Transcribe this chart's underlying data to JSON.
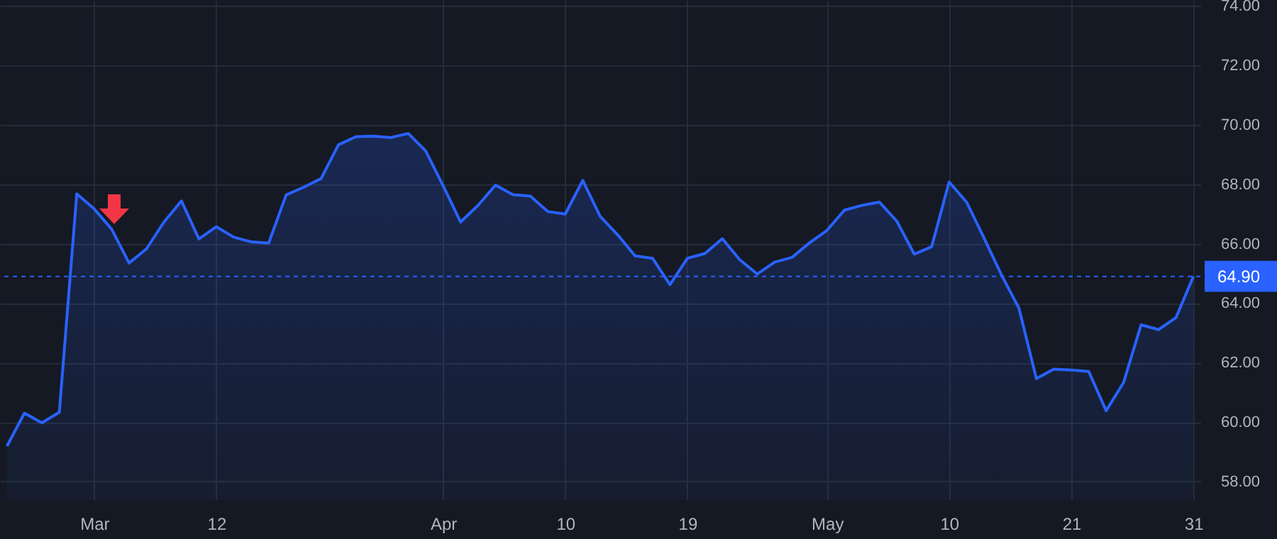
{
  "chart_data": {
    "type": "area",
    "categories": [
      null,
      null,
      null,
      null,
      null,
      "Mar",
      null,
      null,
      null,
      null,
      null,
      null,
      "12",
      null,
      null,
      null,
      null,
      null,
      null,
      null,
      null,
      null,
      null,
      null,
      null,
      "Apr",
      null,
      null,
      null,
      null,
      null,
      null,
      "10",
      null,
      null,
      null,
      null,
      null,
      null,
      "19",
      null,
      null,
      null,
      null,
      null,
      null,
      null,
      "May",
      null,
      null,
      null,
      null,
      null,
      null,
      "10",
      null,
      null,
      null,
      null,
      null,
      null,
      "21",
      null,
      null,
      null,
      null,
      null,
      null,
      "31"
    ],
    "values": [
      59.19,
      60.3,
      59.97,
      60.33,
      67.68,
      67.17,
      66.49,
      65.35,
      65.83,
      66.73,
      67.44,
      66.16,
      66.57,
      66.22,
      66.06,
      66.02,
      67.64,
      67.9,
      68.19,
      69.33,
      69.6,
      69.62,
      69.57,
      69.71,
      69.12,
      67.95,
      66.73,
      67.29,
      67.97,
      67.65,
      67.6,
      67.08,
      67.0,
      68.13,
      66.92,
      66.3,
      65.59,
      65.51,
      64.62,
      65.51,
      65.67,
      66.17,
      65.46,
      64.98,
      65.38,
      65.54,
      66.03,
      66.45,
      67.13,
      67.29,
      67.4,
      66.76,
      65.65,
      65.9,
      68.08,
      67.4,
      66.19,
      64.95,
      63.83,
      61.46,
      61.78,
      61.75,
      61.7,
      60.38,
      61.33,
      63.27,
      63.11,
      63.51,
      64.9
    ],
    "color": "#2962ff",
    "ylim": [
      57.4,
      74.2
    ],
    "yticks": [
      {
        "value": 58,
        "label": "58.00"
      },
      {
        "value": 60,
        "label": "60.00"
      },
      {
        "value": 62,
        "label": "62.00"
      },
      {
        "value": 64,
        "label": "64.00"
      },
      {
        "value": 66,
        "label": "66.00"
      },
      {
        "value": 68,
        "label": "68.00"
      },
      {
        "value": 70,
        "label": "70.00"
      },
      {
        "value": 72,
        "label": "72.00"
      },
      {
        "value": 74,
        "label": "74.00"
      }
    ],
    "grid": true,
    "ref_lines": [
      {
        "axis": "y",
        "value": 64.9,
        "label": "64.90",
        "color": "#2962ff",
        "line_style": "dashed"
      }
    ]
  }
}
